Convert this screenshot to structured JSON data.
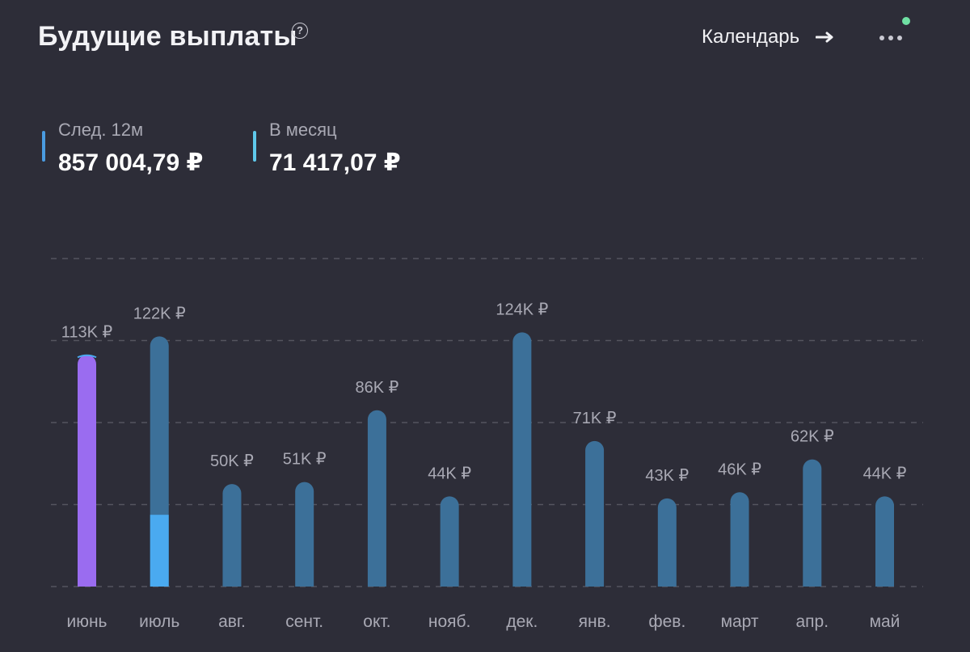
{
  "header": {
    "title": "Будущие выплаты",
    "help_icon": "question-circle-icon",
    "help_glyph": "?",
    "calendar_label": "Календарь",
    "calendar_icon": "arrow-right-icon",
    "more_icon": "more-dots-icon",
    "status_color": "#6fe0a3"
  },
  "stats": {
    "next12": {
      "label": "След. 12м",
      "value": "857 004,79 ₽",
      "color": "#4a9be0"
    },
    "per_month": {
      "label": "В месяц",
      "value": "71 417,07 ₽",
      "color": "#5fc8ea"
    }
  },
  "colors": {
    "background": "#2d2d38",
    "bar": "#3c7099",
    "bar_current": "#9a6cf0",
    "bar_received": "#4aaaf0",
    "grid": "#55555f",
    "text_muted": "#a9a9b4"
  },
  "chart_data": {
    "type": "bar",
    "categories": [
      "июнь",
      "июль",
      "авг.",
      "сент.",
      "окт.",
      "нояб.",
      "дек.",
      "янв.",
      "фев.",
      "март",
      "апр.",
      "май"
    ],
    "values": [
      113,
      122,
      50,
      51,
      86,
      44,
      124,
      71,
      43,
      46,
      62,
      44
    ],
    "value_labels": [
      "113K ₽",
      "122K ₽",
      "50K ₽",
      "51K ₽",
      "86K ₽",
      "44K ₽",
      "124K ₽",
      "71K ₽",
      "43K ₽",
      "46K ₽",
      "62K ₽",
      "44K ₽"
    ],
    "current_month_index": 0,
    "received_part": {
      "index": 1,
      "value": 35
    },
    "unit": "K ₽",
    "ylim": [
      0,
      160
    ],
    "grid": true,
    "gridline_values": [
      0,
      40,
      80,
      120,
      160
    ]
  }
}
